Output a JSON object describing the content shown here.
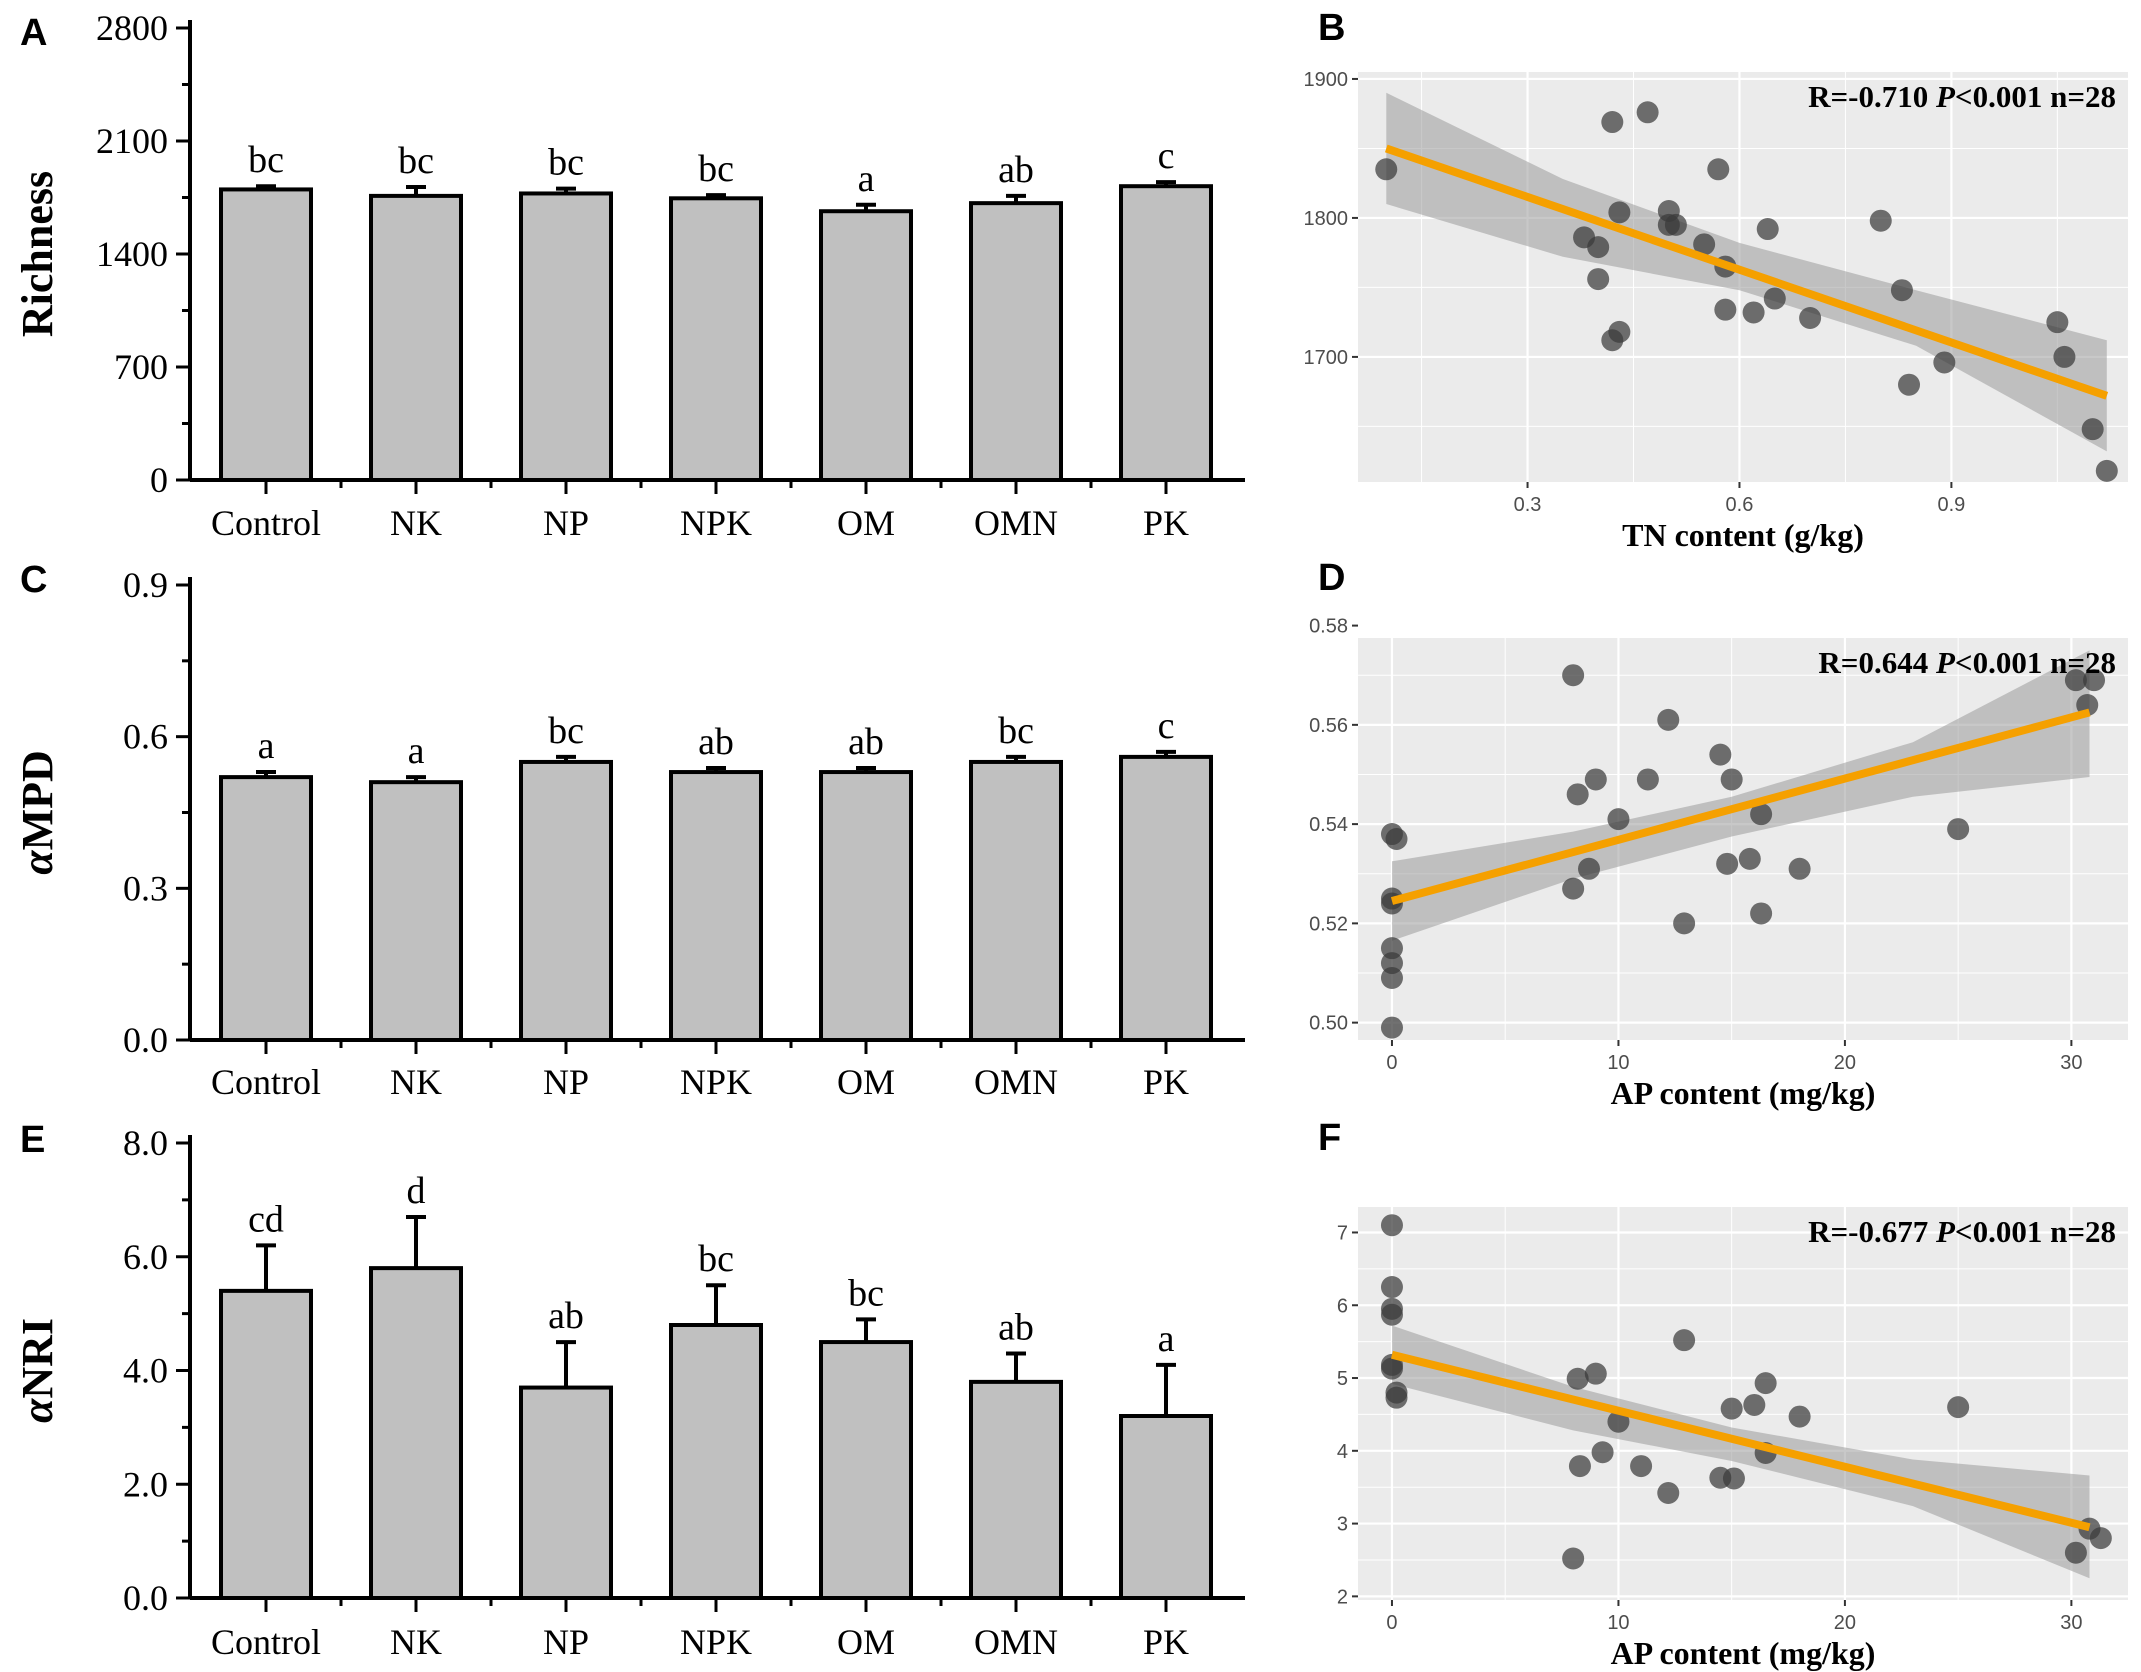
{
  "figure": {
    "accent_color": "#f5a000",
    "point_color": "#3a3a3a",
    "bar_fill": "#c0c0c0",
    "panel_bg": "#ebebeb"
  },
  "chart_data": [
    {
      "id": "A",
      "panel_label": "A",
      "type": "bar",
      "categories": [
        "Control",
        "NK",
        "NP",
        "NPK",
        "OM",
        "OMN",
        "PK"
      ],
      "values": [
        1800,
        1760,
        1775,
        1745,
        1665,
        1715,
        1820
      ],
      "errors": [
        20,
        55,
        30,
        20,
        40,
        45,
        25
      ],
      "sig_letters": [
        "bc",
        "bc",
        "bc",
        "bc",
        "a",
        "ab",
        "c"
      ],
      "ylabel": "Richness",
      "ylabel_italic_prefix": "",
      "ylim": [
        0,
        2800
      ],
      "yticks": [
        0,
        700,
        1400,
        2100,
        2800
      ],
      "ytick_labels": [
        "0",
        "700",
        "1400",
        "2100",
        "2800"
      ]
    },
    {
      "id": "C",
      "panel_label": "C",
      "type": "bar",
      "categories": [
        "Control",
        "NK",
        "NP",
        "NPK",
        "OM",
        "OMN",
        "PK"
      ],
      "values": [
        0.52,
        0.51,
        0.55,
        0.53,
        0.53,
        0.55,
        0.56
      ],
      "errors": [
        0.01,
        0.01,
        0.01,
        0.008,
        0.008,
        0.01,
        0.01
      ],
      "sig_letters": [
        "a",
        "a",
        "bc",
        "ab",
        "ab",
        "bc",
        "c"
      ],
      "ylabel": "MPD",
      "ylabel_italic_prefix": "α",
      "ylim": [
        0,
        0.9
      ],
      "yticks": [
        0,
        0.3,
        0.6,
        0.9
      ],
      "ytick_labels": [
        "0.0",
        "0.3",
        "0.6",
        "0.9"
      ]
    },
    {
      "id": "E",
      "panel_label": "E",
      "type": "bar",
      "categories": [
        "Control",
        "NK",
        "NP",
        "NPK",
        "OM",
        "OMN",
        "PK"
      ],
      "values": [
        5.4,
        5.8,
        3.7,
        4.8,
        4.5,
        3.8,
        3.2
      ],
      "errors": [
        0.8,
        0.9,
        0.8,
        0.7,
        0.4,
        0.5,
        0.9
      ],
      "sig_letters": [
        "cd",
        "d",
        "ab",
        "bc",
        "bc",
        "ab",
        "a"
      ],
      "ylabel": "NRI",
      "ylabel_italic_prefix": "α",
      "ylim": [
        0,
        8
      ],
      "yticks": [
        0,
        2,
        4,
        6,
        8
      ],
      "ytick_labels": [
        "0.0",
        "2.0",
        "4.0",
        "6.0",
        "8.0"
      ]
    },
    {
      "id": "B",
      "panel_label": "B",
      "type": "scatter",
      "xlabel": "TN content (g/kg)",
      "xlim": [
        0.06,
        1.15
      ],
      "ylim": [
        1610,
        1905
      ],
      "xticks": [
        0.3,
        0.6,
        0.9
      ],
      "xtick_labels": [
        "0.3",
        "0.6",
        "0.9"
      ],
      "yticks": [
        1700,
        1800,
        1900
      ],
      "ytick_labels": [
        "1700",
        "1800",
        "1900"
      ],
      "stat_prefix": "R=-0.710 ",
      "stat_p": "P",
      "stat_suffix": "<0.001 n=28",
      "fit": {
        "x": [
          0.1,
          1.12
        ],
        "y": [
          1850,
          1672
        ]
      },
      "band": {
        "x": [
          0.1,
          0.35,
          0.6,
          0.85,
          1.12
        ],
        "upper": [
          1890,
          1828,
          1782,
          1748,
          1712
        ],
        "lower": [
          1810,
          1772,
          1748,
          1708,
          1632
        ]
      },
      "points": {
        "x": [
          0.1,
          0.42,
          0.47,
          0.43,
          0.38,
          0.4,
          0.4,
          0.43,
          0.42,
          0.5,
          0.51,
          0.5,
          0.55,
          0.57,
          0.58,
          0.58,
          0.64,
          0.62,
          0.65,
          0.7,
          0.8,
          0.83,
          0.84,
          0.89,
          1.05,
          1.06,
          1.1,
          1.12
        ],
        "y": [
          1835,
          1869,
          1876,
          1804,
          1786,
          1779,
          1756,
          1718,
          1712,
          1805,
          1795,
          1795,
          1781,
          1835,
          1765,
          1734,
          1792,
          1732,
          1742,
          1728,
          1798,
          1748,
          1680,
          1696,
          1725,
          1700,
          1648,
          1618
        ]
      }
    },
    {
      "id": "D",
      "panel_label": "D",
      "type": "scatter",
      "xlabel": "AP content (mg/kg)",
      "xlim": [
        -1.5,
        32.5
      ],
      "ylim": [
        0.4965,
        0.5775
      ],
      "xticks": [
        0,
        10,
        20,
        30
      ],
      "xtick_labels": [
        "0",
        "10",
        "20",
        "30"
      ],
      "yticks": [
        0.5,
        0.52,
        0.54,
        0.56,
        0.58
      ],
      "ytick_labels": [
        "0.50",
        "0.52",
        "0.54",
        "0.56",
        "0.58"
      ],
      "stat_prefix": "R=0.644 ",
      "stat_p": "P",
      "stat_suffix": "<0.001 n=28",
      "fit": {
        "x": [
          0,
          30.8
        ],
        "y": [
          0.5245,
          0.5625
        ]
      },
      "band": {
        "x": [
          0,
          8,
          15,
          23,
          30.8
        ],
        "upper": [
          0.5325,
          0.5385,
          0.5455,
          0.5565,
          0.575
        ],
        "lower": [
          0.5165,
          0.529,
          0.5375,
          0.5455,
          0.5495
        ]
      },
      "points": {
        "x": [
          0,
          0.2,
          0,
          0,
          0,
          0,
          0,
          0,
          8,
          8.2,
          8,
          9,
          8.7,
          10,
          11.3,
          12.2,
          12.9,
          14.5,
          15,
          14.8,
          16.3,
          16.3,
          15.8,
          18,
          25,
          30.2,
          31,
          30.7
        ],
        "y": [
          0.538,
          0.537,
          0.525,
          0.524,
          0.515,
          0.512,
          0.509,
          0.499,
          0.57,
          0.546,
          0.527,
          0.549,
          0.531,
          0.541,
          0.549,
          0.561,
          0.52,
          0.554,
          0.549,
          0.532,
          0.542,
          0.522,
          0.533,
          0.531,
          0.539,
          0.569,
          0.569,
          0.564
        ]
      }
    },
    {
      "id": "F",
      "panel_label": "F",
      "type": "scatter",
      "xlabel": "AP content (mg/kg)",
      "xlim": [
        -1.5,
        32.5
      ],
      "ylim": [
        1.95,
        7.35
      ],
      "xticks": [
        0,
        10,
        20,
        30
      ],
      "xtick_labels": [
        "0",
        "10",
        "20",
        "30"
      ],
      "yticks": [
        2,
        3,
        4,
        5,
        6,
        7
      ],
      "ytick_labels": [
        "2",
        "3",
        "4",
        "5",
        "6",
        "7"
      ],
      "stat_prefix": "R=-0.677 ",
      "stat_p": "P",
      "stat_suffix": "<0.001 n=28",
      "fit": {
        "x": [
          0,
          30.8
        ],
        "y": [
          5.32,
          2.95
        ]
      },
      "band": {
        "x": [
          0,
          8,
          15,
          23,
          30.8
        ],
        "upper": [
          5.72,
          4.88,
          4.32,
          3.88,
          3.66
        ],
        "lower": [
          4.92,
          4.28,
          3.86,
          3.24,
          2.25
        ]
      },
      "points": {
        "x": [
          0,
          0,
          0,
          0,
          0,
          0,
          0.2,
          0.2,
          8,
          8.2,
          8.3,
          9,
          9.3,
          10,
          11,
          12.2,
          12.9,
          14.5,
          15,
          15.1,
          16,
          16.5,
          16.5,
          18,
          25,
          30.2,
          30.8,
          31.3
        ],
        "y": [
          7.1,
          6.25,
          5.95,
          5.87,
          5.18,
          5.13,
          4.8,
          4.73,
          2.52,
          4.99,
          3.79,
          5.06,
          3.98,
          4.4,
          3.79,
          3.42,
          5.52,
          3.63,
          4.58,
          3.62,
          4.63,
          3.97,
          4.93,
          4.47,
          4.6,
          2.6,
          2.93,
          2.8
        ]
      }
    }
  ]
}
